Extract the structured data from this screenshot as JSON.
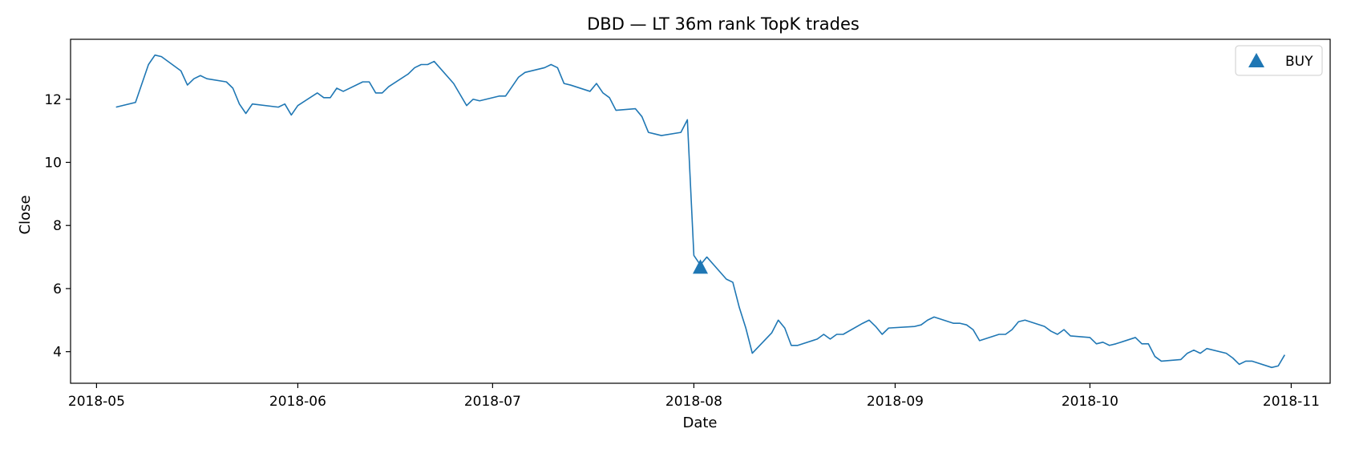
{
  "chart_data": {
    "type": "line",
    "title": "DBD — LT 36m rank TopK trades",
    "xlabel": "Date",
    "ylabel": "Close",
    "ylim": [
      3.0,
      13.9
    ],
    "yticks": [
      4,
      6,
      8,
      10,
      12
    ],
    "xlim": [
      "2018-04-27",
      "2018-11-07"
    ],
    "xticks": [
      "2018-05-01",
      "2018-06-01",
      "2018-07-01",
      "2018-08-01",
      "2018-09-01",
      "2018-10-01",
      "2018-11-01"
    ],
    "xtick_labels": [
      "2018-05",
      "2018-06",
      "2018-07",
      "2018-08",
      "2018-09",
      "2018-10",
      "2018-11"
    ],
    "grid": false,
    "legend_position": "top-right",
    "line_color": "#1f77b4",
    "series": [
      {
        "name": "Close",
        "x": [
          "2018-05-04",
          "2018-05-07",
          "2018-05-08",
          "2018-05-09",
          "2018-05-10",
          "2018-05-11",
          "2018-05-14",
          "2018-05-15",
          "2018-05-16",
          "2018-05-17",
          "2018-05-18",
          "2018-05-21",
          "2018-05-22",
          "2018-05-23",
          "2018-05-24",
          "2018-05-25",
          "2018-05-29",
          "2018-05-30",
          "2018-05-31",
          "2018-06-01",
          "2018-06-04",
          "2018-06-05",
          "2018-06-06",
          "2018-06-07",
          "2018-06-08",
          "2018-06-11",
          "2018-06-12",
          "2018-06-13",
          "2018-06-14",
          "2018-06-15",
          "2018-06-18",
          "2018-06-19",
          "2018-06-20",
          "2018-06-21",
          "2018-06-22",
          "2018-06-25",
          "2018-06-26",
          "2018-06-27",
          "2018-06-28",
          "2018-06-29",
          "2018-07-02",
          "2018-07-03",
          "2018-07-05",
          "2018-07-06",
          "2018-07-09",
          "2018-07-10",
          "2018-07-11",
          "2018-07-12",
          "2018-07-13",
          "2018-07-16",
          "2018-07-17",
          "2018-07-18",
          "2018-07-19",
          "2018-07-20",
          "2018-07-23",
          "2018-07-24",
          "2018-07-25",
          "2018-07-26",
          "2018-07-27",
          "2018-07-30",
          "2018-07-31",
          "2018-08-01",
          "2018-08-02",
          "2018-08-03",
          "2018-08-06",
          "2018-08-07",
          "2018-08-08",
          "2018-08-09",
          "2018-08-10",
          "2018-08-13",
          "2018-08-14",
          "2018-08-15",
          "2018-08-16",
          "2018-08-17",
          "2018-08-20",
          "2018-08-21",
          "2018-08-22",
          "2018-08-23",
          "2018-08-24",
          "2018-08-27",
          "2018-08-28",
          "2018-08-29",
          "2018-08-30",
          "2018-08-31",
          "2018-09-04",
          "2018-09-05",
          "2018-09-06",
          "2018-09-07",
          "2018-09-10",
          "2018-09-11",
          "2018-09-12",
          "2018-09-13",
          "2018-09-14",
          "2018-09-17",
          "2018-09-18",
          "2018-09-19",
          "2018-09-20",
          "2018-09-21",
          "2018-09-24",
          "2018-09-25",
          "2018-09-26",
          "2018-09-27",
          "2018-09-28",
          "2018-10-01",
          "2018-10-02",
          "2018-10-03",
          "2018-10-04",
          "2018-10-05",
          "2018-10-08",
          "2018-10-09",
          "2018-10-10",
          "2018-10-11",
          "2018-10-12",
          "2018-10-15",
          "2018-10-16",
          "2018-10-17",
          "2018-10-18",
          "2018-10-19",
          "2018-10-22",
          "2018-10-23",
          "2018-10-24",
          "2018-10-25",
          "2018-10-26",
          "2018-10-29",
          "2018-10-30",
          "2018-10-31"
        ],
        "y": [
          11.75,
          11.9,
          12.5,
          13.1,
          13.4,
          13.35,
          12.9,
          12.45,
          12.65,
          12.75,
          12.65,
          12.55,
          12.35,
          11.85,
          11.55,
          11.85,
          11.75,
          11.85,
          11.5,
          11.8,
          12.2,
          12.05,
          12.05,
          12.35,
          12.25,
          12.55,
          12.55,
          12.2,
          12.2,
          12.4,
          12.8,
          13.0,
          13.1,
          13.1,
          13.2,
          12.5,
          12.15,
          11.8,
          12.0,
          11.95,
          12.1,
          12.1,
          12.7,
          12.85,
          13.0,
          13.1,
          13.0,
          12.5,
          12.45,
          12.25,
          12.5,
          12.2,
          12.05,
          11.65,
          11.7,
          11.45,
          10.95,
          10.9,
          10.85,
          10.95,
          11.35,
          7.05,
          6.75,
          7.0,
          6.3,
          6.2,
          5.4,
          4.75,
          3.95,
          4.6,
          5.0,
          4.75,
          4.2,
          4.2,
          4.4,
          4.55,
          4.4,
          4.55,
          4.55,
          4.9,
          5.0,
          4.8,
          4.55,
          4.75,
          4.8,
          4.85,
          5.0,
          5.1,
          4.9,
          4.9,
          4.85,
          4.7,
          4.35,
          4.55,
          4.55,
          4.7,
          4.95,
          5.0,
          4.8,
          4.65,
          4.55,
          4.7,
          4.5,
          4.45,
          4.25,
          4.3,
          4.2,
          4.25,
          4.45,
          4.25,
          4.25,
          3.85,
          3.7,
          3.75,
          3.95,
          4.05,
          3.95,
          4.1,
          3.95,
          3.8,
          3.6,
          3.7,
          3.7,
          3.5,
          3.55,
          3.9
        ]
      }
    ],
    "markers": [
      {
        "label": "BUY",
        "date": "2018-08-02",
        "value": 6.7,
        "shape": "triangle-up"
      }
    ],
    "legend": [
      {
        "label": "BUY",
        "shape": "triangle-up"
      }
    ]
  }
}
